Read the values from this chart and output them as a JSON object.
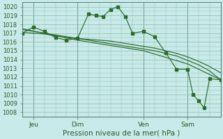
{
  "xlabel": "Pression niveau de la mer( hPa )",
  "bg_color": "#c8eae8",
  "grid_color": "#88b8a8",
  "line_color": "#2d6b2d",
  "ylim": [
    1007.5,
    1020.5
  ],
  "yticks": [
    1008,
    1009,
    1010,
    1011,
    1012,
    1013,
    1014,
    1015,
    1016,
    1017,
    1018,
    1019,
    1020
  ],
  "xlim": [
    0,
    108
  ],
  "xtick_positions": [
    6,
    30,
    66,
    90
  ],
  "xtick_labels": [
    "Jeu",
    "Dim",
    "Ven",
    "Sam"
  ],
  "vlines": [
    6,
    30,
    66,
    90,
    108
  ],
  "series1_x": [
    0,
    6,
    12,
    18,
    24,
    30,
    36,
    40,
    44,
    48,
    52,
    56,
    60,
    66,
    72,
    78,
    84,
    90,
    93,
    96,
    99,
    102,
    108
  ],
  "series1_y": [
    1017.0,
    1017.7,
    1017.2,
    1016.5,
    1016.2,
    1016.4,
    1019.2,
    1019.0,
    1018.9,
    1019.7,
    1020.0,
    1018.9,
    1017.0,
    1017.2,
    1016.6,
    1014.8,
    1012.9,
    1012.9,
    1010.0,
    1009.3,
    1008.5,
    1011.8,
    1011.7
  ],
  "series2_x": [
    0,
    6,
    12,
    18,
    24,
    30,
    36,
    42,
    48,
    54,
    60,
    66,
    72,
    78,
    84,
    90,
    96,
    102,
    108
  ],
  "series2_y": [
    1017.1,
    1017.0,
    1016.9,
    1016.7,
    1016.5,
    1016.4,
    1016.3,
    1016.2,
    1016.1,
    1015.9,
    1015.7,
    1015.5,
    1015.3,
    1015.0,
    1014.7,
    1014.3,
    1013.8,
    1013.2,
    1012.5
  ],
  "series3_x": [
    0,
    6,
    12,
    18,
    24,
    30,
    36,
    42,
    48,
    54,
    60,
    66,
    72,
    78,
    84,
    90,
    96,
    102,
    108
  ],
  "series3_y": [
    1017.4,
    1017.2,
    1017.0,
    1016.8,
    1016.6,
    1016.4,
    1016.2,
    1016.0,
    1015.8,
    1015.6,
    1015.4,
    1015.2,
    1015.0,
    1014.7,
    1014.4,
    1013.9,
    1013.4,
    1012.7,
    1011.7
  ],
  "series4_x": [
    0,
    30,
    66,
    90,
    108
  ],
  "series4_y": [
    1017.5,
    1016.2,
    1015.0,
    1013.5,
    1011.7
  ]
}
